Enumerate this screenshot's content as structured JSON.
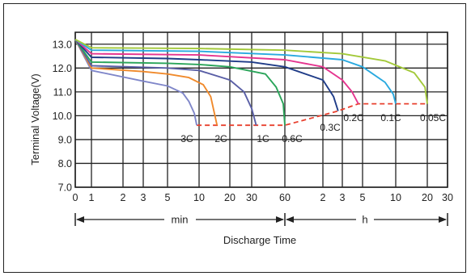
{
  "chart_data": {
    "type": "line",
    "ylabel": "Terminal Voltage(V)",
    "xlabel": "Discharge Time",
    "ylim": [
      7.0,
      13.5
    ],
    "y_ticks": [
      "7.0",
      "8.0",
      "9.0",
      "10.0",
      "11.0",
      "12.0",
      "13.0"
    ],
    "x_tick_labels": [
      "0",
      "1",
      "2",
      "3",
      "5",
      "10",
      "20",
      "30",
      "60",
      "2",
      "3",
      "5",
      "10",
      "20",
      "30"
    ],
    "x_unit_labels": [
      "min",
      "h"
    ],
    "grid": true,
    "series": [
      {
        "name": "3C",
        "color": "#7f86c9",
        "points": [
          [
            0,
            13.2
          ],
          [
            1,
            11.9
          ],
          [
            3,
            11.45
          ],
          [
            5,
            11.25
          ],
          [
            7,
            10.95
          ],
          [
            8,
            10.6
          ],
          [
            9,
            10.1
          ],
          [
            9.5,
            9.6
          ]
        ]
      },
      {
        "name": "2C",
        "color": "#f08a2c",
        "points": [
          [
            0,
            13.2
          ],
          [
            1,
            12.0
          ],
          [
            3,
            11.85
          ],
          [
            5,
            11.75
          ],
          [
            8,
            11.6
          ],
          [
            11,
            11.3
          ],
          [
            13,
            10.8
          ],
          [
            15,
            9.6
          ]
        ]
      },
      {
        "name": "1C",
        "color": "#5a5fa6",
        "points": [
          [
            0,
            13.2
          ],
          [
            1,
            12.1
          ],
          [
            5,
            12.0
          ],
          [
            10,
            11.9
          ],
          [
            20,
            11.5
          ],
          [
            26,
            11.0
          ],
          [
            30,
            10.3
          ],
          [
            33,
            9.6
          ]
        ]
      },
      {
        "name": "0.6C",
        "color": "#2ba55a",
        "points": [
          [
            0,
            13.2
          ],
          [
            1,
            12.25
          ],
          [
            5,
            12.2
          ],
          [
            10,
            12.15
          ],
          [
            20,
            12.05
          ],
          [
            40,
            11.75
          ],
          [
            50,
            11.2
          ],
          [
            58,
            10.5
          ],
          [
            60,
            9.6
          ]
        ]
      },
      {
        "name": "0.3C",
        "color": "#1f3c88",
        "points": [
          [
            0,
            13.2
          ],
          [
            1,
            12.45
          ],
          [
            5,
            12.4
          ],
          [
            10,
            12.35
          ],
          [
            30,
            12.25
          ],
          [
            60,
            12.05
          ],
          [
            120,
            11.5
          ],
          [
            150,
            10.8
          ],
          [
            165,
            10.2
          ]
        ]
      },
      {
        "name": "0.2C",
        "color": "#e5358f",
        "points": [
          [
            0,
            13.2
          ],
          [
            1,
            12.6
          ],
          [
            10,
            12.55
          ],
          [
            60,
            12.35
          ],
          [
            120,
            12.05
          ],
          [
            180,
            11.5
          ],
          [
            230,
            11.0
          ],
          [
            270,
            10.5
          ]
        ]
      },
      {
        "name": "0.1C",
        "color": "#29a9df",
        "points": [
          [
            0,
            13.2
          ],
          [
            1,
            12.75
          ],
          [
            10,
            12.7
          ],
          [
            60,
            12.55
          ],
          [
            180,
            12.35
          ],
          [
            300,
            12.05
          ],
          [
            480,
            11.4
          ],
          [
            570,
            10.9
          ],
          [
            600,
            10.5
          ]
        ]
      },
      {
        "name": "0.05C",
        "color": "#a3c93a",
        "points": [
          [
            0,
            13.2
          ],
          [
            1,
            12.85
          ],
          [
            10,
            12.82
          ],
          [
            60,
            12.75
          ],
          [
            180,
            12.6
          ],
          [
            480,
            12.3
          ],
          [
            900,
            11.8
          ],
          [
            1140,
            11.2
          ],
          [
            1200,
            10.5
          ]
        ]
      }
    ],
    "cutoff_line": {
      "color": "#e8402e",
      "points": [
        [
          9.5,
          9.6
        ],
        [
          15,
          9.6
        ],
        [
          33,
          9.6
        ],
        [
          60,
          9.6
        ],
        [
          165,
          10.2
        ],
        [
          270,
          10.5
        ],
        [
          600,
          10.5
        ],
        [
          1200,
          10.5
        ]
      ]
    },
    "curve_labels": [
      "3C",
      "2C",
      "1C",
      "0.6C",
      "0.3C",
      "0.2C",
      "0.1C",
      "0.05C"
    ]
  }
}
